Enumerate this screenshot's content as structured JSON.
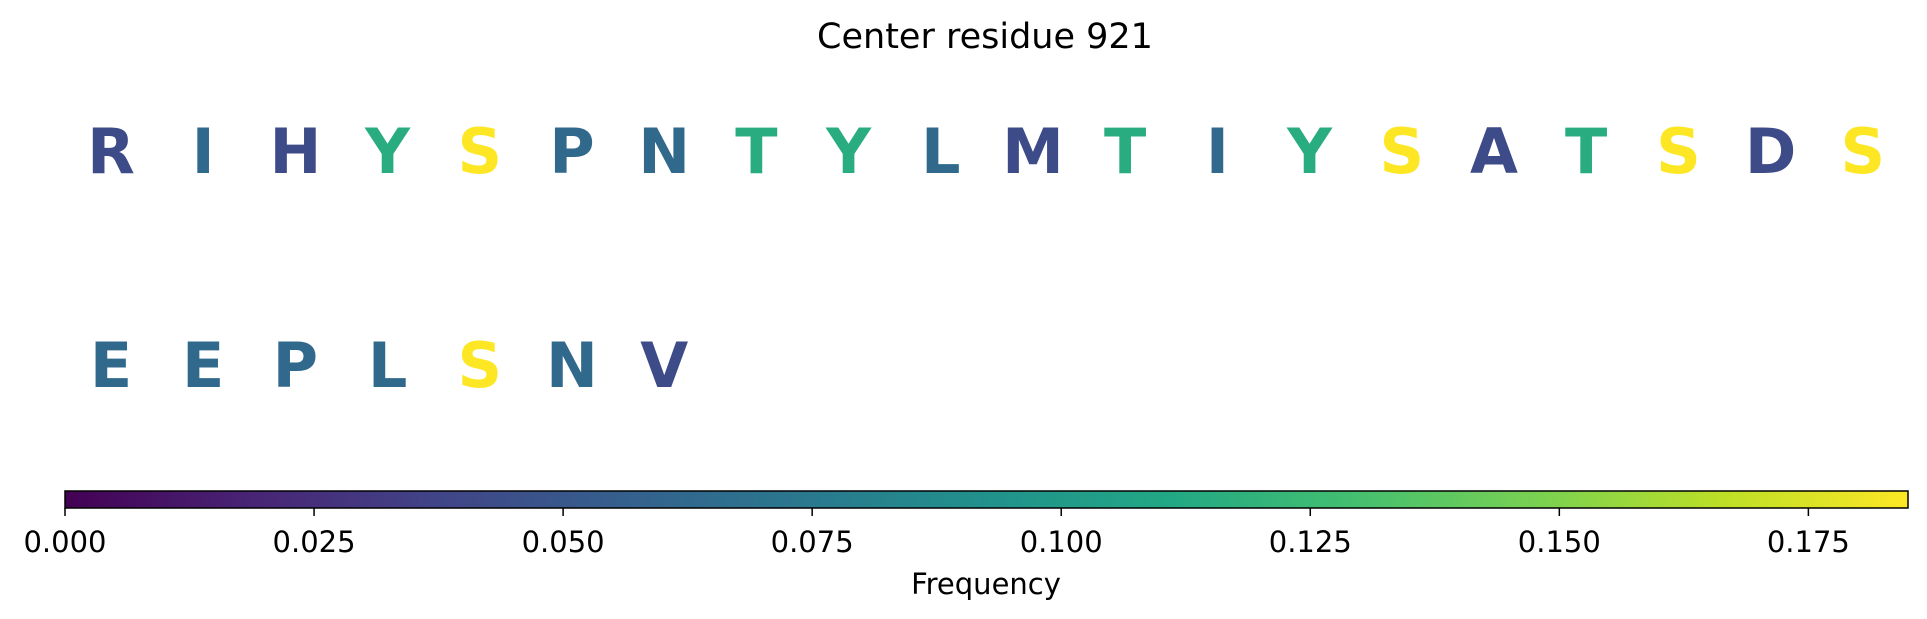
{
  "chart_data": {
    "type": "sequence-frequency",
    "title": "Center residue 921",
    "rows": [
      [
        {
          "residue": "R",
          "frequency": 0.042
        },
        {
          "residue": "I",
          "frequency": 0.063
        },
        {
          "residue": "H",
          "frequency": 0.042
        },
        {
          "residue": "Y",
          "frequency": 0.115
        },
        {
          "residue": "S",
          "frequency": 0.185
        },
        {
          "residue": "P",
          "frequency": 0.063
        },
        {
          "residue": "N",
          "frequency": 0.063
        },
        {
          "residue": "T",
          "frequency": 0.115
        },
        {
          "residue": "Y",
          "frequency": 0.115
        },
        {
          "residue": "L",
          "frequency": 0.063
        },
        {
          "residue": "M",
          "frequency": 0.042
        },
        {
          "residue": "T",
          "frequency": 0.115
        },
        {
          "residue": "I",
          "frequency": 0.063
        },
        {
          "residue": "Y",
          "frequency": 0.115
        },
        {
          "residue": "S",
          "frequency": 0.185
        },
        {
          "residue": "A",
          "frequency": 0.042
        },
        {
          "residue": "T",
          "frequency": 0.115
        },
        {
          "residue": "S",
          "frequency": 0.185
        },
        {
          "residue": "D",
          "frequency": 0.042
        },
        {
          "residue": "S",
          "frequency": 0.185
        }
      ],
      [
        {
          "residue": "E",
          "frequency": 0.063
        },
        {
          "residue": "E",
          "frequency": 0.063
        },
        {
          "residue": "P",
          "frequency": 0.063
        },
        {
          "residue": "L",
          "frequency": 0.063
        },
        {
          "residue": "S",
          "frequency": 0.185
        },
        {
          "residue": "N",
          "frequency": 0.063
        },
        {
          "residue": "V",
          "frequency": 0.042
        }
      ]
    ],
    "colorbar": {
      "label": "Frequency",
      "colormap": "viridis",
      "range": [
        0,
        0.185
      ],
      "ticks": [
        0.0,
        0.025,
        0.05,
        0.075,
        0.1,
        0.125,
        0.15,
        0.175
      ],
      "tick_labels": [
        "0.000",
        "0.025",
        "0.050",
        "0.075",
        "0.100",
        "0.125",
        "0.150",
        "0.175"
      ],
      "orientation": "horizontal"
    }
  }
}
